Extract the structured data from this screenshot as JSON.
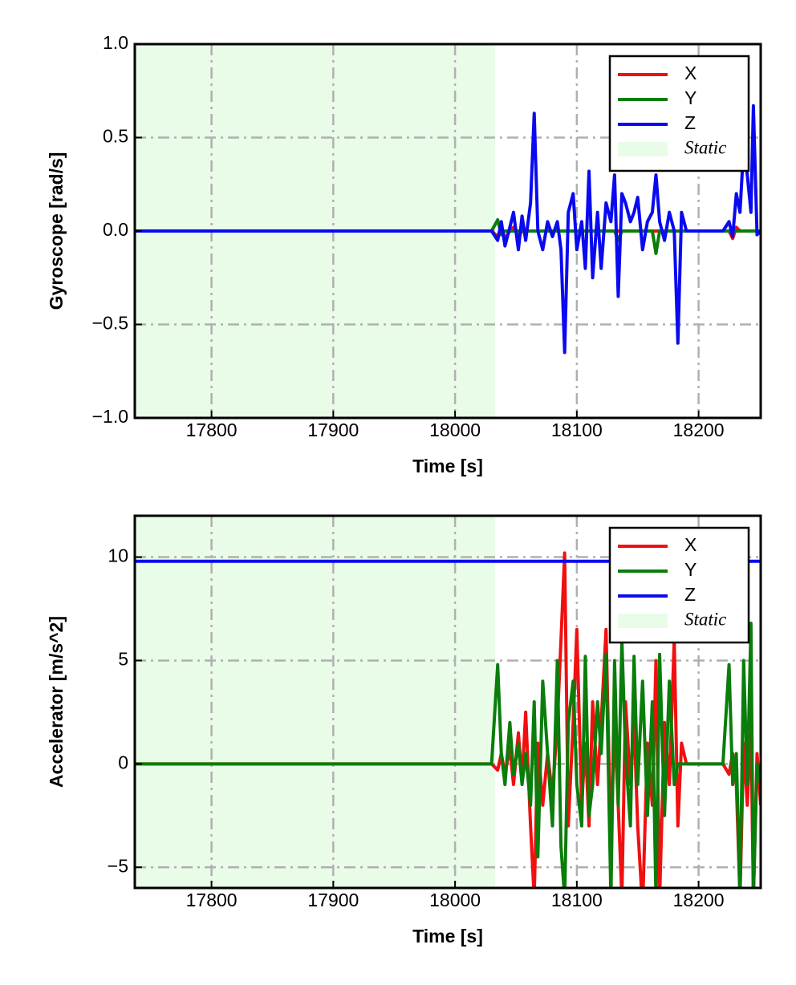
{
  "chart_data": [
    {
      "type": "line",
      "xlabel": "Time [s]",
      "ylabel": "Gyroscope [rad/s]",
      "xlim": [
        17737,
        18251
      ],
      "ylim": [
        -1,
        1
      ],
      "xticks": [
        17800,
        17900,
        18000,
        18100,
        18200
      ],
      "yticks": [
        {
          "value": -1,
          "label": "−1.0"
        },
        {
          "value": -0.5,
          "label": "−0.5"
        },
        {
          "value": 0,
          "label": "0.0"
        },
        0.5,
        {
          "value": 1,
          "label": "1.0"
        }
      ],
      "grid": true,
      "legend": "upper right",
      "span": {
        "name": "Static",
        "color": "#e8fce8",
        "xrange": [
          17737,
          18033
        ]
      },
      "x": [
        17737,
        18030,
        18035,
        18038,
        18041,
        18045,
        18048,
        18052,
        18055,
        18058,
        18062,
        18065,
        18068,
        18072,
        18076,
        18080,
        18084,
        18087,
        18090,
        18093,
        18097,
        18100,
        18104,
        18107,
        18110,
        18113,
        18117,
        18120,
        18124,
        18128,
        18131,
        18134,
        18137,
        18140,
        18144,
        18147,
        18150,
        18154,
        18158,
        18162,
        18165,
        18168,
        18172,
        18176,
        18180,
        18183,
        18186,
        18190,
        18195,
        18200,
        18205,
        18210,
        18215,
        18220,
        18225,
        18228,
        18231,
        18234,
        18237,
        18240,
        18243,
        18245,
        18248,
        18251
      ],
      "series": [
        {
          "name": "X",
          "color": "#f01010",
          "values": [
            0,
            0,
            -0.03,
            0.02,
            -0.04,
            0,
            0.02,
            -0.03,
            0,
            0,
            0,
            0,
            0,
            0,
            0,
            0,
            0,
            0,
            0,
            0,
            0,
            0,
            0,
            0,
            0,
            0,
            0,
            0,
            0,
            0,
            0,
            0,
            0,
            0,
            0,
            0,
            0,
            0,
            0,
            0,
            0,
            0,
            0,
            0,
            0,
            0,
            0,
            0,
            0,
            0,
            0,
            0,
            0,
            0,
            0,
            -0.04,
            0.02,
            0,
            0,
            0,
            0,
            0,
            0,
            0
          ]
        },
        {
          "name": "Y",
          "color": "#0a7d0a",
          "values": [
            0,
            0,
            0.06,
            -0.02,
            0,
            0,
            0,
            0,
            0,
            0,
            0,
            0,
            0,
            0,
            0,
            0,
            0,
            0,
            0,
            0,
            0,
            0,
            0,
            0,
            0,
            0,
            0,
            0,
            0,
            0,
            0,
            -0.05,
            0,
            0,
            0,
            0,
            0,
            0,
            0,
            0,
            -0.12,
            0,
            0,
            0,
            0,
            0,
            0,
            0,
            0,
            0,
            0,
            0,
            0,
            0,
            0,
            0,
            0,
            0,
            0,
            0,
            0,
            0,
            0,
            0
          ]
        },
        {
          "name": "Z",
          "color": "#0a0af0",
          "values": [
            0,
            0,
            -0.05,
            0.05,
            -0.08,
            0.02,
            0.1,
            -0.1,
            0.08,
            -0.05,
            0.15,
            0.63,
            0.0,
            -0.1,
            0.05,
            -0.03,
            0.05,
            -0.1,
            -0.65,
            0.1,
            0.2,
            -0.1,
            0.05,
            -0.2,
            0.32,
            -0.25,
            0.1,
            -0.2,
            0.15,
            0.05,
            0.3,
            -0.35,
            0.2,
            0.15,
            0.05,
            0.1,
            0.18,
            -0.1,
            0.05,
            0.1,
            0.3,
            0.05,
            -0.05,
            0.1,
            0.0,
            -0.6,
            0.1,
            0.0,
            0.0,
            0.0,
            0.0,
            0.0,
            0.0,
            0.0,
            0.05,
            -0.03,
            0.2,
            0.1,
            0.45,
            0.3,
            0.1,
            0.67,
            -0.02,
            0.0
          ]
        }
      ]
    },
    {
      "type": "line",
      "xlabel": "Time [s]",
      "ylabel": "Accelerator [m/s^2]",
      "xlim": [
        17737,
        18251
      ],
      "ylim": [
        -6,
        12
      ],
      "xticks": [
        17800,
        17900,
        18000,
        18100,
        18200
      ],
      "yticks": [
        {
          "value": -5,
          "label": "−5"
        },
        0,
        5,
        10
      ],
      "grid": true,
      "legend": "upper right",
      "span": {
        "name": "Static",
        "color": "#e8fce8",
        "xrange": [
          17737,
          18033
        ]
      },
      "x": [
        17737,
        18030,
        18035,
        18038,
        18041,
        18045,
        18048,
        18052,
        18055,
        18058,
        18062,
        18065,
        18068,
        18072,
        18076,
        18080,
        18084,
        18087,
        18090,
        18093,
        18097,
        18100,
        18104,
        18107,
        18110,
        18113,
        18117,
        18120,
        18124,
        18128,
        18131,
        18134,
        18137,
        18140,
        18144,
        18147,
        18150,
        18154,
        18158,
        18162,
        18165,
        18168,
        18172,
        18176,
        18180,
        18183,
        18186,
        18190,
        18195,
        18200,
        18205,
        18210,
        18215,
        18220,
        18225,
        18228,
        18231,
        18234,
        18237,
        18240,
        18243,
        18245,
        18248,
        18251
      ],
      "series": [
        {
          "name": "X",
          "color": "#f01010",
          "values": [
            0,
            0,
            -0.3,
            0.5,
            -0.5,
            0.8,
            -1,
            1.5,
            -0.8,
            2.5,
            -3,
            -6.5,
            1,
            -2,
            0.5,
            -1.5,
            2,
            6,
            10.2,
            -3,
            2,
            6.5,
            -2,
            1,
            -3,
            3,
            -1,
            2,
            6.5,
            -4,
            2,
            -2,
            -6.5,
            3,
            -1,
            2,
            -3,
            -7,
            1,
            -2,
            5,
            -6.5,
            2,
            -1,
            6,
            -3,
            1,
            0,
            0,
            0,
            0,
            0,
            0,
            0,
            -0.5,
            0.5,
            -1,
            -6.5,
            1,
            -2,
            2,
            -6.5,
            0.5,
            -2
          ]
        },
        {
          "name": "Y",
          "color": "#0a7d0a",
          "values": [
            0,
            0,
            4.8,
            0.5,
            -1,
            2,
            -0.5,
            1,
            -1,
            0.5,
            -2,
            3,
            -4.5,
            4,
            0.5,
            -3,
            5,
            -4,
            -6.5,
            2,
            4,
            -1,
            -3,
            5.2,
            -2.5,
            -1,
            3,
            0.5,
            5.3,
            -6.5,
            5,
            -2,
            6,
            0.5,
            -3,
            5.2,
            -1,
            4,
            -2.5,
            3,
            -6.5,
            5.3,
            -2.5,
            4,
            -1,
            0,
            0,
            0,
            0,
            0,
            0,
            0,
            0,
            0,
            4.8,
            -1,
            0.5,
            -6.5,
            5,
            -1,
            6.8,
            -6.5,
            0,
            -1
          ]
        },
        {
          "name": "Z",
          "color": "#0a0af0",
          "values": [
            9.8,
            9.8,
            9.8,
            9.8,
            9.8,
            9.8,
            9.8,
            9.8,
            9.8,
            9.8,
            9.8,
            9.8,
            9.8,
            9.8,
            9.8,
            9.8,
            9.8,
            9.8,
            9.8,
            9.8,
            9.8,
            9.8,
            9.8,
            9.8,
            9.8,
            9.8,
            9.8,
            9.8,
            9.8,
            9.8,
            9.8,
            9.8,
            9.8,
            9.8,
            9.8,
            9.8,
            9.8,
            9.8,
            9.8,
            9.8,
            9.8,
            9.8,
            9.8,
            9.8,
            9.8,
            9.8,
            9.8,
            9.8,
            9.8,
            9.8,
            9.8,
            9.8,
            9.8,
            9.8,
            9.8,
            9.8,
            9.8,
            9.8,
            9.8,
            9.8,
            9.8,
            9.8,
            9.8,
            9.8
          ]
        }
      ]
    }
  ]
}
